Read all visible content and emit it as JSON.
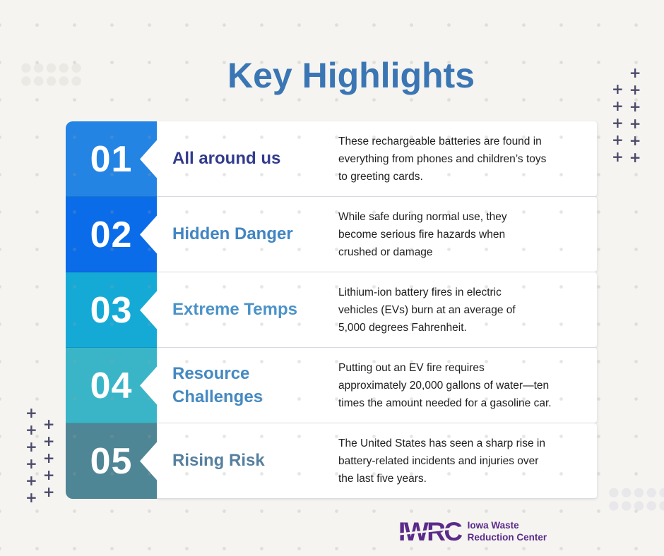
{
  "page": {
    "title": "Key Highlights"
  },
  "colors": {
    "background": "#f5f4f1",
    "title": "#3b76b4",
    "logo_purple": "#5b2b8a",
    "plus": "#4c4a6a",
    "description_text": "#1e1e20"
  },
  "items": [
    {
      "number": "01",
      "title": "All around us",
      "description": "These rechargeable batteries are found in\neverything from phones and children’s toys\nto greeting cards.",
      "block_color": "#2384e4",
      "title_color": "#323b8c"
    },
    {
      "number": "02",
      "title": "Hidden Danger",
      "description": "While safe during normal use, they\nbecome serious fire hazards when\ncrushed or damage",
      "block_color": "#0b6ce9",
      "title_color": "#4285c2"
    },
    {
      "number": "03",
      "title": "Extreme Temps",
      "description": "Lithium-ion battery fires in electric\nvehicles (EVs) burn at an average of\n5,000 degrees Fahrenheit.",
      "block_color": "#15aad6",
      "title_color": "#4b93c9"
    },
    {
      "number": "04",
      "title": "Resource Challenges",
      "description": "Putting out an EV fire requires\napproximately 20,000 gallons of water—ten\ntimes the amount needed for a gasoline car.",
      "block_color": "#3ab5c8",
      "title_color": "#4489c1"
    },
    {
      "number": "05",
      "title": "Rising Risk",
      "description": "The United States has seen a sharp rise in\nbattery-related incidents and injuries over\nthe last five years.",
      "block_color": "#4f8695",
      "title_color": "#56809f"
    }
  ],
  "footer": {
    "logo_acronym": "IWRC",
    "logo_name": "Iowa Waste\nReduction Center"
  },
  "decorations": {
    "plus_glyph": "+"
  }
}
